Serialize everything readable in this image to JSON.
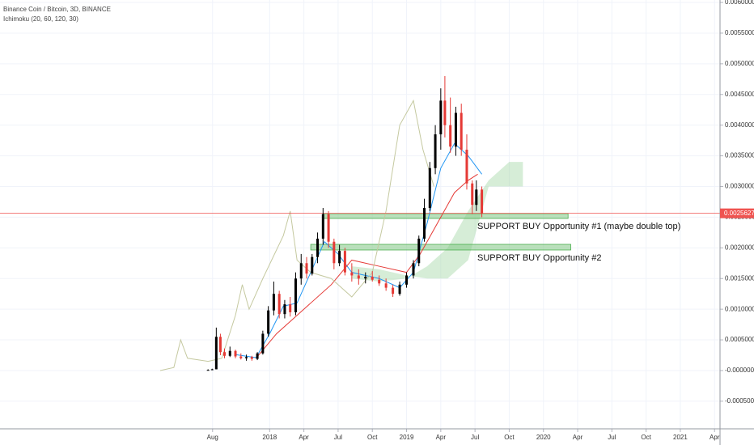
{
  "chart_data": {
    "type": "candlestick",
    "title": "Binance Coin / Bitcoin, 3D, BINANCE",
    "subtitle": "Ichimoku (20, 60, 120, 30)",
    "up_color": "#000000",
    "down_color": "#e53935",
    "grid": true,
    "x": [
      2017.55,
      2017.58,
      2017.61,
      2017.64,
      2017.67,
      2017.71,
      2017.75,
      2017.79,
      2017.83,
      2017.87,
      2017.91,
      2017.95,
      2017.99,
      2018.03,
      2018.07,
      2018.11,
      2018.15,
      2018.19,
      2018.23,
      2018.27,
      2018.31,
      2018.35,
      2018.39,
      2018.43,
      2018.47,
      2018.51,
      2018.55,
      2018.6,
      2018.65,
      2018.7,
      2018.75,
      2018.8,
      2018.85,
      2018.9,
      2018.95,
      2019.0,
      2019.05,
      2019.09,
      2019.13,
      2019.17,
      2019.21,
      2019.25,
      2019.28,
      2019.32,
      2019.36,
      2019.4,
      2019.44,
      2019.48,
      2019.51,
      2019.55
    ],
    "open": [
      1e-05,
      1e-05,
      2e-05,
      0.00055,
      0.0003,
      0.00024,
      0.00032,
      0.00023,
      0.0002,
      0.00022,
      0.00019,
      0.00028,
      0.0006,
      0.00098,
      0.00125,
      0.00092,
      0.00108,
      0.00095,
      0.0015,
      0.00175,
      0.00158,
      0.00185,
      0.00215,
      0.00255,
      0.0021,
      0.00175,
      0.00195,
      0.0016,
      0.00155,
      0.0015,
      0.00153,
      0.00148,
      0.00142,
      0.00135,
      0.00125,
      0.0014,
      0.00155,
      0.00175,
      0.00215,
      0.00265,
      0.0033,
      0.00385,
      0.0044,
      0.004,
      0.00365,
      0.0042,
      0.0036,
      0.00305,
      0.0027,
      0.00295
    ],
    "high": [
      2e-05,
      3e-05,
      0.0007,
      0.0006,
      0.00036,
      0.00039,
      0.00034,
      0.00028,
      0.00026,
      0.00024,
      0.0003,
      0.00065,
      0.00105,
      0.00145,
      0.0013,
      0.00115,
      0.0012,
      0.0016,
      0.0019,
      0.00185,
      0.0019,
      0.00225,
      0.00265,
      0.0026,
      0.00215,
      0.00205,
      0.002,
      0.00175,
      0.00165,
      0.0016,
      0.00162,
      0.00155,
      0.0015,
      0.0014,
      0.00145,
      0.0016,
      0.0018,
      0.0022,
      0.0028,
      0.0034,
      0.004,
      0.0046,
      0.0048,
      0.00445,
      0.0043,
      0.00435,
      0.00385,
      0.0031,
      0.0031,
      0.003
    ],
    "low": [
      5e-06,
      5e-06,
      2e-05,
      0.00025,
      0.0002,
      0.00022,
      0.0002,
      0.00018,
      0.00016,
      0.00016,
      0.00017,
      0.00026,
      0.00055,
      0.0009,
      0.00085,
      0.00085,
      0.00088,
      0.0009,
      0.0014,
      0.0015,
      0.00155,
      0.00175,
      0.00205,
      0.002,
      0.00165,
      0.0017,
      0.00155,
      0.00145,
      0.0014,
      0.00142,
      0.00145,
      0.00138,
      0.0013,
      0.0012,
      0.00122,
      0.00135,
      0.0015,
      0.0017,
      0.0021,
      0.0026,
      0.0032,
      0.0036,
      0.0038,
      0.00355,
      0.0035,
      0.0035,
      0.00295,
      0.00255,
      0.0026,
      0.0025
    ],
    "close": [
      1e-05,
      2e-05,
      0.00055,
      0.0003,
      0.00024,
      0.00032,
      0.00023,
      0.0002,
      0.00022,
      0.00019,
      0.00028,
      0.0006,
      0.00098,
      0.00125,
      0.00092,
      0.00108,
      0.00095,
      0.0015,
      0.00175,
      0.00158,
      0.00185,
      0.00215,
      0.00255,
      0.0021,
      0.00175,
      0.00195,
      0.0016,
      0.00155,
      0.0015,
      0.00153,
      0.00148,
      0.00142,
      0.00135,
      0.00125,
      0.0014,
      0.00155,
      0.00175,
      0.00215,
      0.00265,
      0.0033,
      0.00385,
      0.0044,
      0.004,
      0.00365,
      0.0042,
      0.0036,
      0.00305,
      0.0027,
      0.00295,
      0.0025627
    ],
    "last_price": 0.0025627,
    "last_price_color": "#ef5350",
    "lines": [
      {
        "type": "line",
        "color": "#2196f3",
        "x": [
          2017.75,
          2017.9,
          2018.0,
          2018.1,
          2018.2,
          2018.3,
          2018.4,
          2018.5,
          2018.6,
          2018.8,
          2018.95,
          2019.05,
          2019.15,
          2019.25,
          2019.35,
          2019.45,
          2019.55
        ],
        "values": [
          0.00026,
          0.00021,
          0.0006,
          0.00105,
          0.0011,
          0.0016,
          0.0021,
          0.0019,
          0.0016,
          0.0015,
          0.00135,
          0.0016,
          0.0024,
          0.0033,
          0.0037,
          0.0035,
          0.0032
        ]
      },
      {
        "type": "line",
        "color": "#e53935",
        "x": [
          2017.9,
          2018.05,
          2018.2,
          2018.3,
          2018.45,
          2018.6,
          2018.8,
          2019.0,
          2019.1,
          2019.2,
          2019.35,
          2019.45,
          2019.52
        ],
        "values": [
          0.0002,
          0.0006,
          0.0009,
          0.0011,
          0.0014,
          0.0018,
          0.0017,
          0.0016,
          0.0019,
          0.0023,
          0.0029,
          0.0031,
          0.0032
        ]
      },
      {
        "type": "line",
        "color": "#c5c9a0",
        "x": [
          2017.2,
          2017.3,
          2017.35,
          2017.4,
          2017.55,
          2017.65,
          2017.75,
          2017.8,
          2017.85,
          2017.95,
          2018.1,
          2018.15,
          2018.2,
          2018.3,
          2018.45,
          2018.6,
          2018.75,
          2018.85,
          2018.95,
          2019.05,
          2019.12,
          2019.2
        ],
        "values": [
          0.0,
          5e-05,
          0.0005,
          0.0002,
          0.00015,
          0.0002,
          0.0009,
          0.0014,
          0.001,
          0.0015,
          0.0022,
          0.0026,
          0.0018,
          0.0016,
          0.0015,
          0.0012,
          0.0016,
          0.0026,
          0.004,
          0.0044,
          0.0036,
          0.003
        ]
      }
    ],
    "cloud": {
      "type": "area",
      "color": "#a5d6a7",
      "x": [
        2018.6,
        2018.8,
        2019.0,
        2019.15,
        2019.3,
        2019.45,
        2019.6,
        2019.75,
        2019.85
      ],
      "span_a": [
        0.0015,
        0.00145,
        0.0015,
        0.0017,
        0.002,
        0.0026,
        0.0031,
        0.0034,
        0.0034
      ],
      "span_b": [
        0.0017,
        0.00165,
        0.00155,
        0.0015,
        0.0015,
        0.0018,
        0.003,
        0.003,
        0.003
      ]
    },
    "zones": [
      {
        "text": "SUPPORT BUY Opportunity #1 (maybe double top)",
        "color": "#81c784",
        "x": [
          2018.39,
          2020.18
        ],
        "y": [
          0.002479,
          0.002558
        ]
      },
      {
        "text": "SUPPORT BUY Opportunity #2",
        "color": "#81c784",
        "x": [
          2018.3,
          2020.2
        ],
        "y": [
          0.001965,
          0.002057
        ]
      }
    ],
    "xlim": [
      2016.03,
      2021.29
    ],
    "ylim": [
      -0.00095,
      0.00604
    ],
    "xticks": [
      {
        "value": 2017.583,
        "label": "Aug"
      },
      2018,
      {
        "value": 2018.25,
        "label": "Apr"
      },
      {
        "value": 2018.5,
        "label": "Jul"
      },
      {
        "value": 2018.75,
        "label": "Oct"
      },
      2019,
      {
        "value": 2019.25,
        "label": "Apr"
      },
      {
        "value": 2019.5,
        "label": "Jul"
      },
      {
        "value": 2019.75,
        "label": "Oct"
      },
      2020,
      {
        "value": 2020.25,
        "label": "Apr"
      },
      {
        "value": 2020.5,
        "label": "Jul"
      },
      {
        "value": 2020.75,
        "label": "Oct"
      },
      2021,
      {
        "value": 2021.25,
        "label": "Apr"
      }
    ],
    "yticks": [
      {
        "value": 0.006,
        "label": "0.0060000"
      },
      {
        "value": 0.0055,
        "label": "0.0055000"
      },
      {
        "value": 0.005,
        "label": "0.0050000"
      },
      {
        "value": 0.0045,
        "label": "0.0045000"
      },
      {
        "value": 0.004,
        "label": "0.0040000"
      },
      {
        "value": 0.0035,
        "label": "0.0035000"
      },
      {
        "value": 0.003,
        "label": "0.0030000"
      },
      {
        "value": 0.0025,
        "label": "0.0025000"
      },
      {
        "value": 0.002,
        "label": "0.0020000"
      },
      {
        "value": 0.0015,
        "label": "0.0015000"
      },
      {
        "value": 0.001,
        "label": "0.0010000"
      },
      {
        "value": 0.0005,
        "label": "0.0005000"
      },
      {
        "value": 0,
        "label": "-0.0000000"
      },
      {
        "value": -0.0005,
        "label": "-0.0005000"
      }
    ]
  }
}
